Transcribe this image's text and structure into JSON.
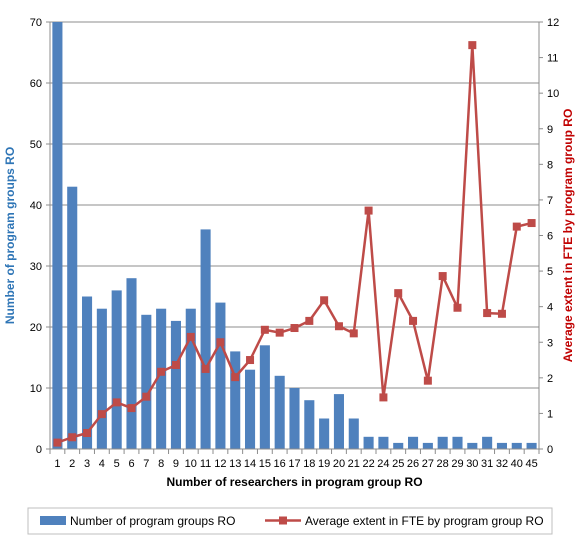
{
  "chart_data": {
    "type": "bar+line",
    "xlabel": "Number of researchers in program group RO",
    "ylabel": "Number of program groups RO",
    "y2label": "Average extent in FTE by program group RO",
    "ylim": [
      0,
      70
    ],
    "yticks": [
      0,
      10,
      20,
      30,
      40,
      50,
      60,
      70
    ],
    "y2lim": [
      0,
      12
    ],
    "y2ticks": [
      0,
      1,
      2,
      3,
      4,
      5,
      6,
      7,
      8,
      9,
      10,
      11,
      12
    ],
    "grid": true,
    "legend_position": "bottom",
    "categories": [
      "1",
      "2",
      "3",
      "4",
      "5",
      "6",
      "7",
      "8",
      "9",
      "10",
      "11",
      "12",
      "13",
      "14",
      "15",
      "16",
      "17",
      "18",
      "19",
      "20",
      "21",
      "22",
      "24",
      "25",
      "26",
      "27",
      "28",
      "29",
      "30",
      "31",
      "32",
      "40",
      "45"
    ],
    "series": [
      {
        "name": "Number of program groups RO",
        "type": "bar",
        "axis": "left",
        "color": "#4f81bd",
        "values": [
          70,
          43,
          25,
          23,
          26,
          28,
          22,
          23,
          21,
          23,
          36,
          24,
          16,
          13,
          17,
          12,
          10,
          8,
          5,
          9,
          5,
          2,
          2,
          1,
          2,
          1,
          2,
          2,
          1,
          2,
          1,
          1,
          1
        ]
      },
      {
        "name": "Average extent in FTE by program group RO",
        "type": "line",
        "axis": "right",
        "color": "#be4b48",
        "values": [
          0.18,
          0.33,
          0.45,
          0.98,
          1.31,
          1.15,
          1.47,
          2.17,
          2.36,
          3.15,
          2.25,
          3.0,
          2.02,
          2.5,
          3.35,
          3.27,
          3.4,
          3.6,
          4.18,
          3.45,
          3.25,
          6.7,
          1.45,
          4.38,
          3.6,
          1.92,
          4.86,
          3.97,
          11.35,
          3.82,
          3.8,
          6.25,
          6.35
        ]
      }
    ]
  }
}
